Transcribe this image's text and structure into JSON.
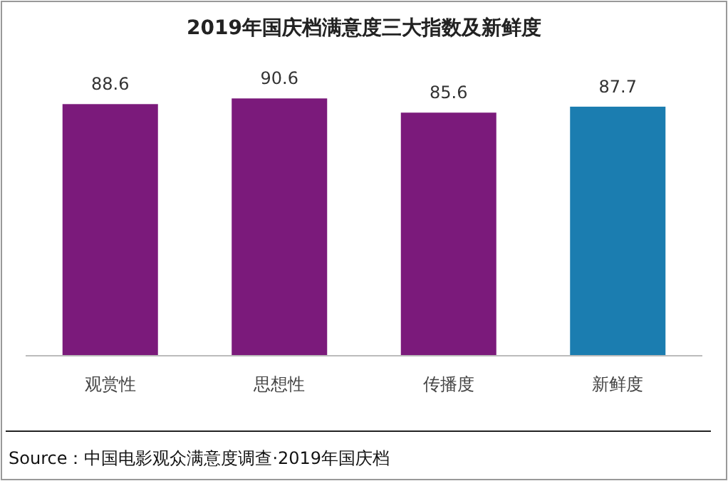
{
  "chart_data": {
    "type": "bar",
    "title": "2019年国庆档满意度三大指数及新鲜度",
    "categories": [
      "观赏性",
      "思想性",
      "传播度",
      "新鲜度"
    ],
    "values": [
      88.6,
      90.6,
      85.6,
      87.7
    ],
    "colors": [
      "#7b1a7b",
      "#7b1a7b",
      "#7b1a7b",
      "#1b7db0"
    ],
    "data_labels": true,
    "annotations": [
      "Source：中国电影观众满意度调查·2019年国庆档"
    ]
  }
}
